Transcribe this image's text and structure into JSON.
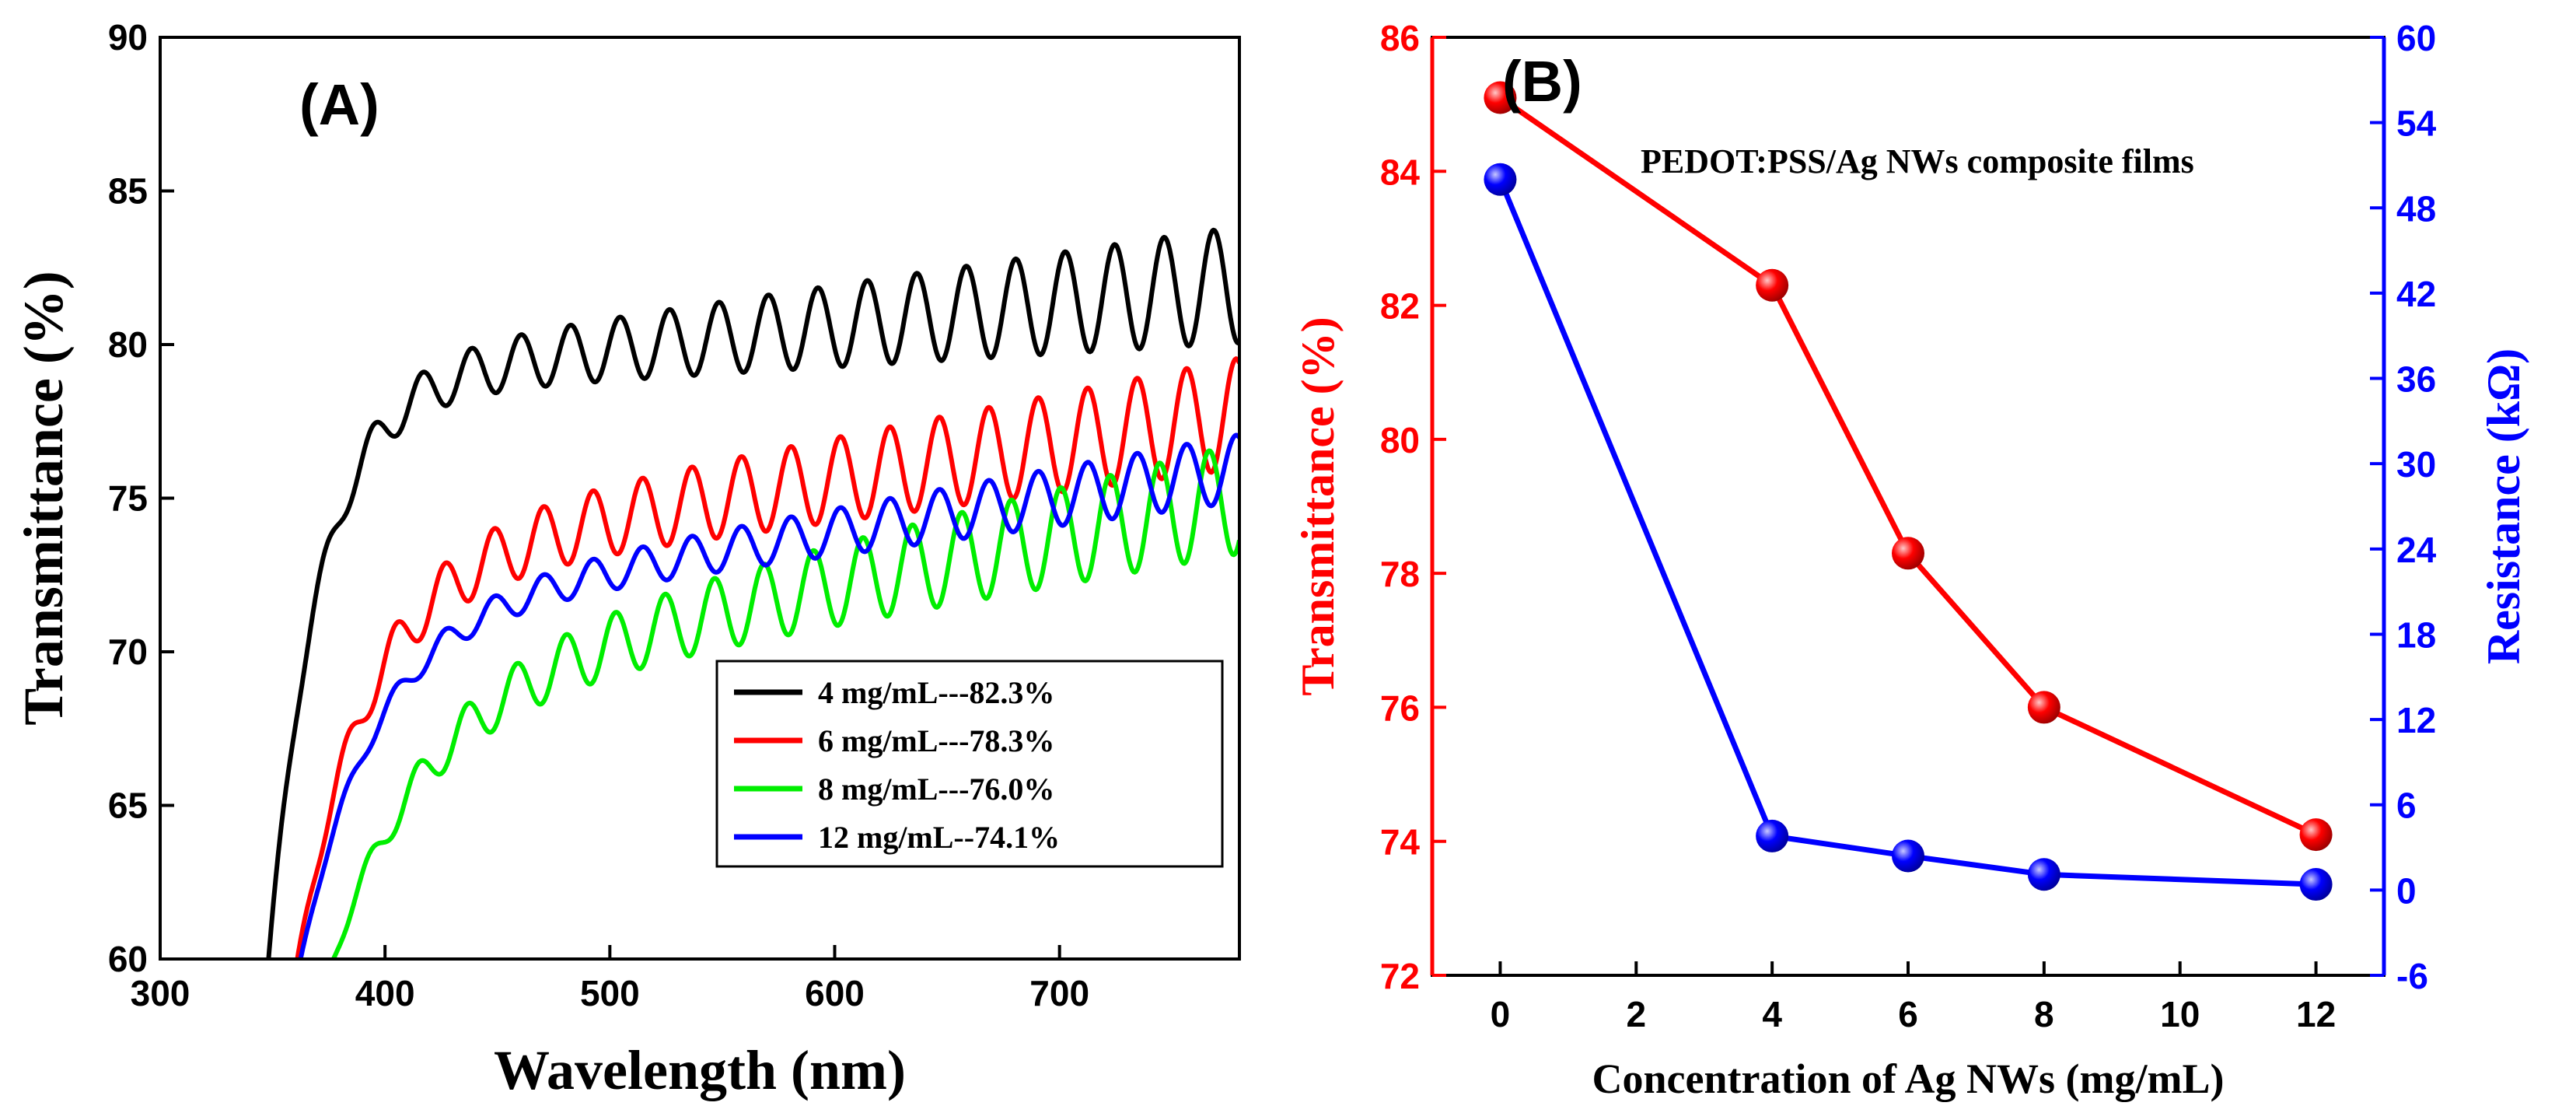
{
  "chart_data": [
    {
      "type": "line",
      "panel_label": "(A)",
      "xlabel": "Wavelength (nm)",
      "ylabel": "Transmittance (%)",
      "xlim": [
        300,
        780
      ],
      "ylim": [
        60,
        90
      ],
      "xticks": [
        300,
        400,
        500,
        600,
        700
      ],
      "yticks": [
        60,
        65,
        70,
        75,
        80,
        85,
        90
      ],
      "legend_position": "bottom-right",
      "series": [
        {
          "name": "4 mg/mL---82.3%",
          "color": "#000000",
          "onset": 345,
          "base": 80.6,
          "slope": 0.0075,
          "knee": 22,
          "amp0": 0.7,
          "amp1": 1.9,
          "period": 22
        },
        {
          "name": "6 mg/mL---78.3%",
          "color": "#ff0000",
          "onset": 355,
          "base": 75.6,
          "slope": 0.012,
          "knee": 30,
          "amp0": 0.9,
          "amp1": 1.8,
          "period": 22
        },
        {
          "name": "8 mg/mL---76.0%",
          "color": "#00ee00",
          "onset": 365,
          "base": 72.2,
          "slope": 0.0155,
          "knee": 40,
          "amp0": 0.8,
          "amp1": 1.8,
          "period": 22
        },
        {
          "name": "12 mg/mL--74.1%",
          "color": "#0000ff",
          "onset": 355,
          "base": 73.9,
          "slope": 0.0115,
          "knee": 32,
          "amp0": 0.4,
          "amp1": 1.1,
          "period": 22
        }
      ]
    },
    {
      "type": "line",
      "panel_label": "(B)",
      "annotation": "PEDOT:PSS/Ag NWs composite films",
      "xlabel": "Concentration of  Ag NWs (mg/mL)",
      "ylabel": "Transmittance (%)",
      "y2label": "Resistance (kΩ)",
      "xlim": [
        -1,
        13
      ],
      "ylim": [
        72,
        86
      ],
      "y2lim": [
        -6,
        60
      ],
      "xticks": [
        0,
        2,
        4,
        6,
        8,
        10,
        12
      ],
      "yticks": [
        72,
        74,
        76,
        78,
        80,
        82,
        84,
        86
      ],
      "y2ticks": [
        -6,
        0,
        6,
        12,
        18,
        24,
        30,
        36,
        42,
        48,
        54,
        60
      ],
      "x": [
        0,
        4,
        6,
        8,
        12
      ],
      "series": [
        {
          "name": "Transmittance",
          "axis": "left",
          "color": "#ff0000",
          "values": [
            85.1,
            82.3,
            78.3,
            76.0,
            74.1
          ]
        },
        {
          "name": "Resistance",
          "axis": "right",
          "color": "#0000ff",
          "values": [
            50.0,
            3.8,
            2.4,
            1.1,
            0.4
          ]
        }
      ]
    }
  ]
}
